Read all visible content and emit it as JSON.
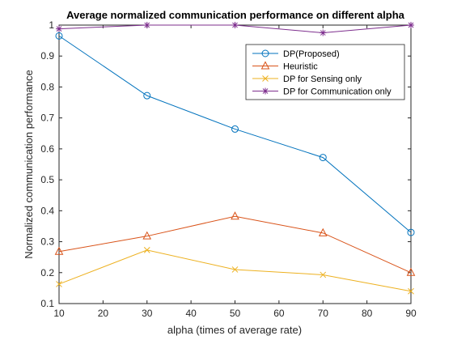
{
  "chart_data": {
    "type": "line",
    "title": "Average normalized communication performance on different alpha",
    "xlabel": "alpha (times of average rate)",
    "ylabel": "Normalized communication performance",
    "xlim": [
      10,
      90
    ],
    "ylim": [
      0.1,
      1
    ],
    "xticks": [
      "10",
      "20",
      "30",
      "40",
      "50",
      "60",
      "70",
      "80",
      "90"
    ],
    "yticks": [
      "0.1",
      "0.2",
      "0.3",
      "0.4",
      "0.5",
      "0.6",
      "0.7",
      "0.8",
      "0.9",
      "1"
    ],
    "grid": false,
    "legend_position": "top-right",
    "x": [
      10,
      30,
      50,
      70,
      90
    ],
    "series": [
      {
        "name": "DP(Proposed)",
        "values": [
          0.965,
          0.772,
          0.664,
          0.572,
          0.33
        ],
        "color": "#0072BD",
        "marker": "circle"
      },
      {
        "name": "Heuristic",
        "values": [
          0.268,
          0.318,
          0.382,
          0.328,
          0.2
        ],
        "color": "#D95319",
        "marker": "triangle"
      },
      {
        "name": "DP for Sensing only",
        "values": [
          0.163,
          0.273,
          0.21,
          0.193,
          0.14
        ],
        "color": "#EDB120",
        "marker": "x"
      },
      {
        "name": "DP for Communication only",
        "values": [
          0.988,
          1.0,
          1.0,
          0.975,
          1.0
        ],
        "color": "#7E2F8E",
        "marker": "star"
      }
    ]
  }
}
